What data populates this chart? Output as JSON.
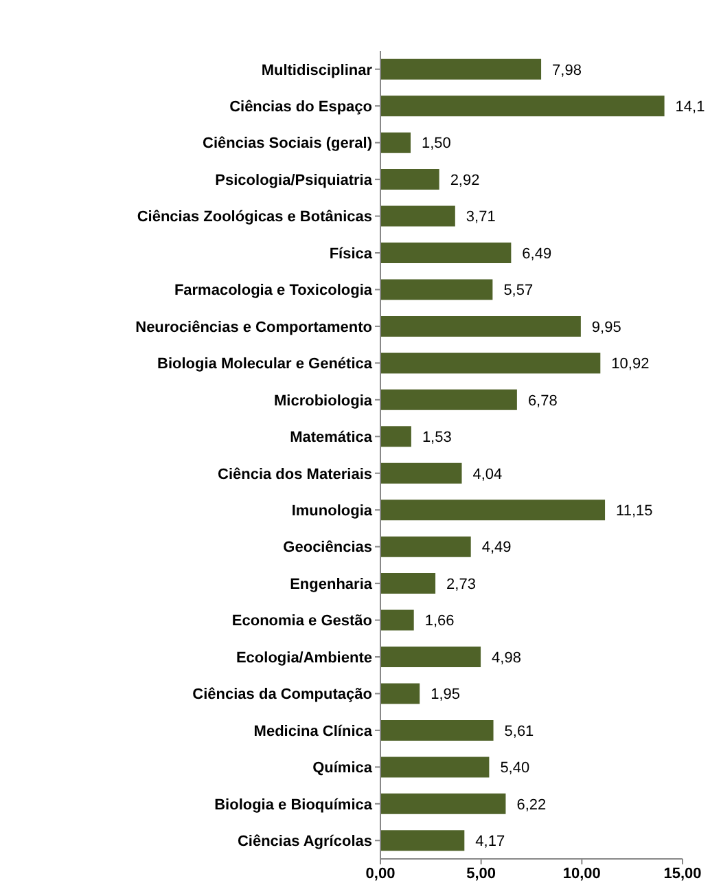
{
  "chart_data": {
    "type": "bar",
    "orientation": "horizontal",
    "categories": [
      "Multidisciplinar",
      "Ciências do Espaço",
      "Ciências Sociais (geral)",
      "Psicologia/Psiquiatria",
      "Ciências Zoológicas e Botânicas",
      "Física",
      "Farmacologia e Toxicologia",
      "Neurociências  e Comportamento",
      "Biologia Molecular e Genética",
      "Microbiologia",
      "Matemática",
      "Ciência dos Materiais",
      "Imunologia",
      "Geociências",
      "Engenharia",
      "Economia e Gestão",
      "Ecologia/Ambiente",
      "Ciências da Computação",
      "Medicina Clínica",
      "Química",
      "Biologia e Bioquímica",
      "Ciências Agrícolas"
    ],
    "values": [
      7.98,
      14.1,
      1.5,
      2.92,
      3.71,
      6.49,
      5.57,
      9.95,
      10.92,
      6.78,
      1.53,
      4.04,
      11.15,
      4.49,
      2.73,
      1.66,
      4.98,
      1.95,
      5.61,
      5.4,
      6.22,
      4.17
    ],
    "value_labels": [
      "7,98",
      "14,1",
      "1,50",
      "2,92",
      "3,71",
      "6,49",
      "5,57",
      "9,95",
      "10,92",
      "6,78",
      "1,53",
      "4,04",
      "11,15",
      "4,49",
      "2,73",
      "1,66",
      "4,98",
      "1,95",
      "5,61",
      "5,40",
      "6,22",
      "4,17"
    ],
    "color": "#4f6228",
    "xlim": [
      0,
      15
    ],
    "xticks": [
      {
        "value": 0,
        "label": "0,00"
      },
      {
        "value": 5,
        "label": "5,00"
      },
      {
        "value": 10,
        "label": "10,00"
      },
      {
        "value": 15,
        "label": "15,00"
      }
    ],
    "grid": false,
    "legend": false
  }
}
